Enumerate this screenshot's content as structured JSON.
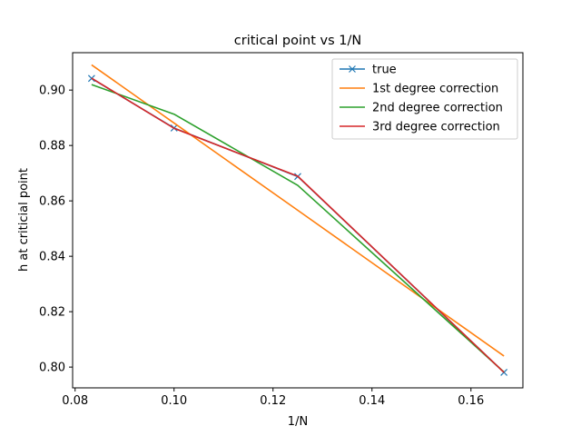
{
  "chart_data": {
    "type": "line",
    "title": "critical point vs 1/N",
    "xlabel": "1/N",
    "ylabel": "h at criticial point",
    "xlim": [
      0.0795,
      0.1705
    ],
    "ylim": [
      0.7925,
      0.9135
    ],
    "x_ticks": [
      0.08,
      0.1,
      0.12,
      0.14,
      0.16
    ],
    "x_tick_labels": [
      "0.08",
      "0.10",
      "0.12",
      "0.14",
      "0.16"
    ],
    "y_ticks": [
      0.8,
      0.82,
      0.84,
      0.86,
      0.88,
      0.9
    ],
    "y_tick_labels": [
      "0.80",
      "0.82",
      "0.84",
      "0.86",
      "0.88",
      "0.90"
    ],
    "grid": false,
    "legend_position": "top-right",
    "x": [
      0.08333,
      0.1,
      0.125,
      0.16667
    ],
    "series": [
      {
        "name": "true",
        "color": "#1f77b4",
        "marker": "x",
        "values": [
          0.9042,
          0.8863,
          0.8688,
          0.7981
        ]
      },
      {
        "name": "1st degree correction",
        "color": "#ff7f0e",
        "marker": "none",
        "values": [
          0.9091,
          0.8881,
          0.8566,
          0.804
        ]
      },
      {
        "name": "2nd degree correction",
        "color": "#2ca02c",
        "marker": "none",
        "values": [
          0.902,
          0.8913,
          0.8656,
          0.7982
        ]
      },
      {
        "name": "3rd degree correction",
        "color": "#d62728",
        "marker": "none",
        "values": [
          0.9043,
          0.8862,
          0.8689,
          0.7981
        ]
      }
    ]
  }
}
